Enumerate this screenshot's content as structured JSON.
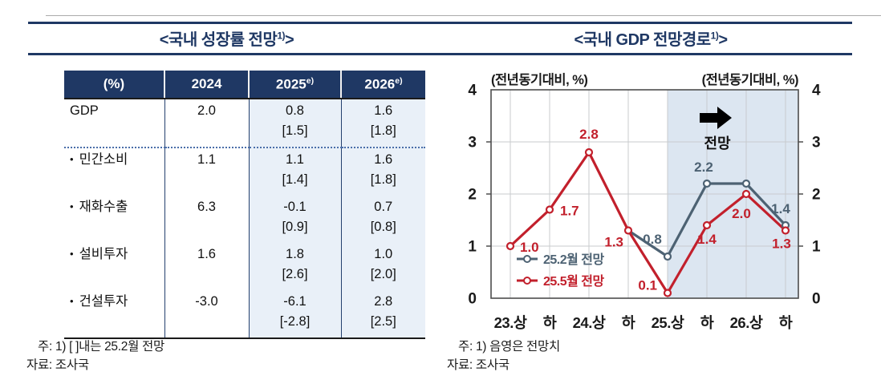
{
  "titles": {
    "left": {
      "text": "<국내 성장률 전망",
      "sup": "1)",
      "close": ">"
    },
    "right": {
      "text": "<국내 GDP 전망경로",
      "sup": "1)",
      "close": ">"
    }
  },
  "table": {
    "header": [
      {
        "label": "(%)",
        "sup": ""
      },
      {
        "label": "2024",
        "sup": ""
      },
      {
        "label": "2025",
        "sup": "e)"
      },
      {
        "label": "2026",
        "sup": "e)"
      }
    ],
    "rows": [
      {
        "label": "GDP",
        "bullet": false,
        "y2024": "2.0",
        "y2025": "0.8",
        "y2025b": "[1.5]",
        "y2026": "1.6",
        "y2026b": "[1.8]"
      },
      {
        "label": "민간소비",
        "bullet": true,
        "y2024": "1.1",
        "y2025": "1.1",
        "y2025b": "[1.4]",
        "y2026": "1.6",
        "y2026b": "[1.8]"
      },
      {
        "label": "재화수출",
        "bullet": true,
        "y2024": "6.3",
        "y2025": "-0.1",
        "y2025b": "[0.9]",
        "y2026": "0.7",
        "y2026b": "[0.8]"
      },
      {
        "label": "설비투자",
        "bullet": true,
        "y2024": "1.6",
        "y2025": "1.8",
        "y2025b": "[2.6]",
        "y2026": "1.0",
        "y2026b": "[2.0]"
      },
      {
        "label": "건설투자",
        "bullet": true,
        "y2024": "-3.0",
        "y2025": "-6.1",
        "y2025b": "[-2.8]",
        "y2026": "2.8",
        "y2026b": "[2.5]"
      }
    ],
    "notes": [
      "주: 1) [ ]내는 25.2월 전망",
      "자료: 조사국"
    ]
  },
  "chart": {
    "unit_left": "(전년동기대비, %)",
    "unit_right": "(전년동기대비, %)",
    "forecast_annotation": "전망",
    "notes": [
      "주: 1) 음영은 전망치",
      "자료: 조사국"
    ]
  },
  "chart_data": {
    "type": "line",
    "categories": [
      "23.상",
      "하",
      "24.상",
      "하",
      "25.상",
      "하",
      "26.상",
      "하"
    ],
    "ylim": [
      0,
      4
    ],
    "yticks": [
      0,
      1,
      2,
      3,
      4
    ],
    "grid": true,
    "legend_position": "inside bottom-left",
    "shaded_region": {
      "from_category_index": 4,
      "to_end": true,
      "color": "#DCE6F1",
      "meaning": "forecast period (음영은 전망치)"
    },
    "series": [
      {
        "name": "25.2월 전망",
        "color": "#4D6273",
        "points": [
          {
            "category_index": 3,
            "value": 1.3,
            "label": "",
            "marker": false
          },
          {
            "category_index": 4,
            "value": 0.8,
            "label": "0.8",
            "marker": true,
            "dx": -19,
            "dy": -16,
            "anchor": "middle"
          },
          {
            "category_index": 5,
            "value": 2.2,
            "label": "2.2",
            "marker": true,
            "dx": -4,
            "dy": -15,
            "anchor": "middle"
          },
          {
            "category_index": 6,
            "value": 2.2,
            "label": "",
            "marker": true
          },
          {
            "category_index": 7,
            "value": 1.4,
            "label": "1.4",
            "marker": true,
            "dx": -6,
            "dy": -15,
            "anchor": "middle"
          }
        ]
      },
      {
        "name": "25.5월 전망",
        "color": "#C2202C",
        "points": [
          {
            "category_index": 0,
            "value": 1.0,
            "label": "1.0",
            "marker": true,
            "dx": 12,
            "dy": 7,
            "anchor": "start"
          },
          {
            "category_index": 1,
            "value": 1.7,
            "label": "1.7",
            "marker": true,
            "dx": 13,
            "dy": 7,
            "anchor": "start"
          },
          {
            "category_index": 2,
            "value": 2.8,
            "label": "2.8",
            "marker": true,
            "dx": 0,
            "dy": -17,
            "anchor": "middle"
          },
          {
            "category_index": 3,
            "value": 1.3,
            "label": "1.3",
            "marker": true,
            "dx": -6,
            "dy": 20,
            "anchor": "end"
          },
          {
            "category_index": 4,
            "value": 0.1,
            "label": "0.1",
            "marker": true,
            "dx": -13,
            "dy": -4,
            "anchor": "end"
          },
          {
            "category_index": 5,
            "value": 1.4,
            "label": "1.4",
            "marker": true,
            "dx": 0,
            "dy": 23,
            "anchor": "middle"
          },
          {
            "category_index": 6,
            "value": 2.0,
            "label": "2.0",
            "marker": true,
            "dx": -6,
            "dy": 30,
            "anchor": "middle"
          },
          {
            "category_index": 7,
            "value": 1.3,
            "label": "1.3",
            "marker": true,
            "dx": -5,
            "dy": 22,
            "anchor": "middle"
          }
        ]
      }
    ]
  },
  "colors": {
    "navy": "#1F3864",
    "series_feb_2025": "#4D6273",
    "series_may_2025": "#C2202C",
    "forecast_shade": "#DCE6F1",
    "table_band": "#E9F0F8",
    "gridline": "#c8cbce",
    "plot_frame": "#4d4d4d"
  }
}
